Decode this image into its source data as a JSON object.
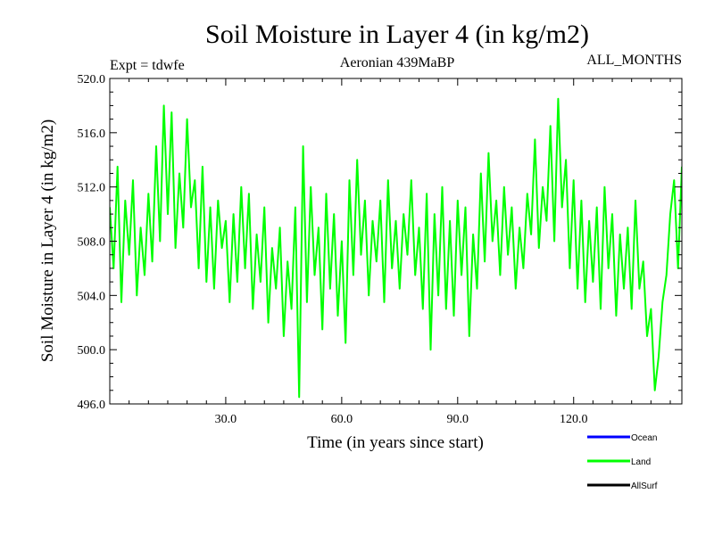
{
  "chart_data": {
    "type": "line",
    "title": "Soil Moisture in Layer 4 (in kg/m2)",
    "experiment": "Expt = tdwfe",
    "subtitle": "Aeronian 439MaBP",
    "period": "ALL_MONTHS",
    "xlabel": "Time (in years since start)",
    "ylabel": "Soil Moisture in Layer 4 (in kg/m2)",
    "xlim": [
      0,
      148
    ],
    "ylim": [
      496.0,
      520.0
    ],
    "x_ticks": [
      30,
      60,
      90,
      120
    ],
    "x_tick_labels": [
      "30.0",
      "60.0",
      "90.0",
      "120.0"
    ],
    "y_ticks": [
      496,
      500,
      504,
      508,
      512,
      516,
      520
    ],
    "y_tick_labels": [
      "496.0",
      "500.0",
      "504.0",
      "508.0",
      "512.0",
      "516.0",
      "520.0"
    ],
    "legend": [
      {
        "name": "Ocean",
        "color": "#0000ff"
      },
      {
        "name": "Land",
        "color": "#00ff00"
      },
      {
        "name": "AllSurf",
        "color": "#000000"
      }
    ],
    "series": [
      {
        "name": "Land",
        "color": "#00ff00",
        "x_start": 0,
        "x_step": 1,
        "values": [
          510.5,
          506.0,
          513.5,
          503.5,
          511.0,
          507.0,
          512.5,
          504.0,
          509.0,
          505.5,
          511.5,
          506.5,
          515.0,
          508.0,
          518.0,
          510.0,
          517.5,
          507.5,
          513.0,
          509.0,
          517.0,
          510.5,
          512.5,
          506.0,
          513.5,
          505.0,
          510.5,
          504.5,
          511.0,
          507.5,
          509.5,
          503.5,
          510.0,
          505.0,
          512.0,
          506.0,
          511.5,
          503.0,
          508.5,
          505.0,
          510.5,
          502.0,
          507.5,
          504.5,
          509.0,
          501.0,
          506.5,
          503.0,
          510.5,
          496.5,
          515.0,
          503.5,
          512.0,
          505.5,
          509.0,
          501.5,
          511.5,
          504.5,
          510.0,
          502.5,
          508.0,
          500.5,
          512.5,
          505.5,
          514.0,
          507.0,
          511.0,
          504.0,
          509.5,
          506.5,
          511.0,
          503.5,
          512.5,
          506.0,
          509.5,
          504.5,
          510.0,
          507.0,
          512.5,
          505.5,
          509.0,
          503.0,
          511.5,
          500.0,
          510.0,
          504.0,
          512.0,
          503.0,
          509.5,
          502.5,
          511.0,
          505.5,
          510.5,
          501.0,
          508.5,
          504.5,
          513.0,
          506.5,
          514.5,
          508.0,
          511.0,
          505.5,
          512.0,
          507.0,
          510.5,
          504.5,
          509.0,
          506.0,
          511.5,
          508.5,
          515.5,
          507.5,
          512.0,
          509.5,
          516.5,
          508.0,
          518.5,
          510.5,
          514.0,
          506.0,
          512.5,
          504.5,
          511.0,
          503.5,
          509.5,
          505.0,
          510.5,
          503.0,
          512.0,
          506.0,
          510.0,
          502.5,
          508.5,
          504.5,
          509.0,
          503.0,
          511.0,
          504.5,
          506.5,
          501.0,
          503.0,
          497.0,
          499.5,
          503.5,
          505.5,
          510.0,
          512.5,
          506.0,
          513.5
        ]
      }
    ]
  }
}
